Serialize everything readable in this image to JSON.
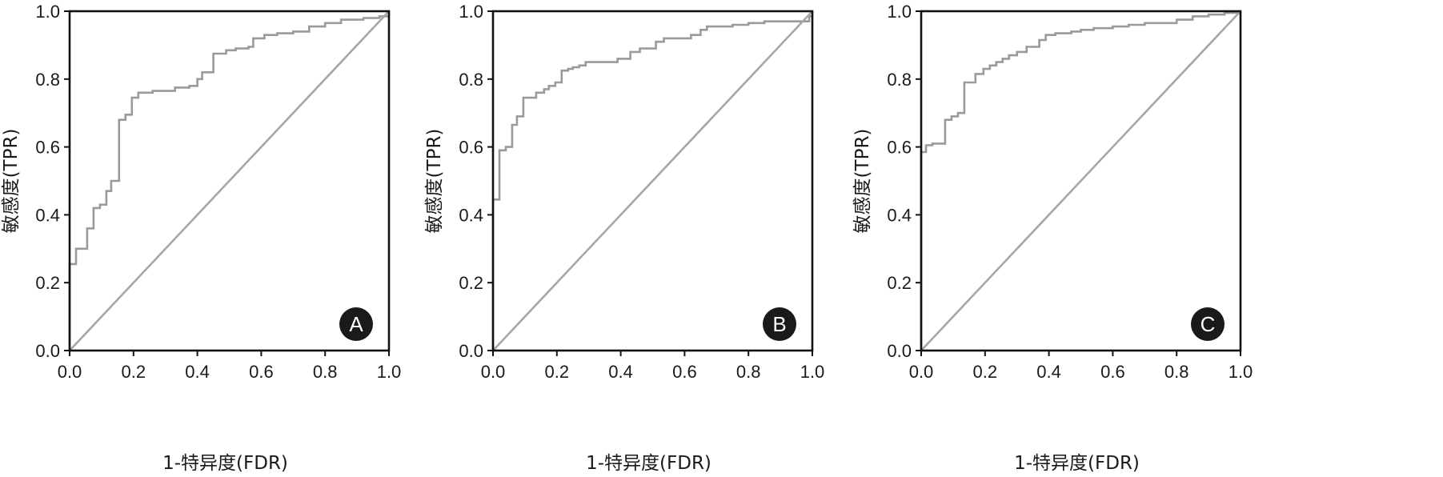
{
  "chart_data": [
    {
      "type": "line",
      "panel_label": "A",
      "xlabel": "1-特异度(FDR)",
      "ylabel": "敏感度(TPR)",
      "xlim": [
        0,
        1
      ],
      "ylim": [
        0,
        1
      ],
      "x_ticks": [
        "0.0",
        "0.2",
        "0.4",
        "0.6",
        "0.8",
        "1.0"
      ],
      "y_ticks": [
        "0.0",
        "0.2",
        "0.4",
        "0.6",
        "0.8",
        "1.0"
      ],
      "grid": false,
      "series": [
        {
          "style": "step",
          "color": "#9a9a9a",
          "points": [
            [
              0.0,
              0.0
            ],
            [
              0.0,
              0.255
            ],
            [
              0.02,
              0.255
            ],
            [
              0.02,
              0.3
            ],
            [
              0.055,
              0.3
            ],
            [
              0.055,
              0.36
            ],
            [
              0.075,
              0.36
            ],
            [
              0.075,
              0.42
            ],
            [
              0.095,
              0.42
            ],
            [
              0.095,
              0.43
            ],
            [
              0.115,
              0.43
            ],
            [
              0.115,
              0.47
            ],
            [
              0.13,
              0.47
            ],
            [
              0.13,
              0.5
            ],
            [
              0.155,
              0.5
            ],
            [
              0.155,
              0.68
            ],
            [
              0.175,
              0.68
            ],
            [
              0.175,
              0.695
            ],
            [
              0.195,
              0.695
            ],
            [
              0.195,
              0.745
            ],
            [
              0.215,
              0.745
            ],
            [
              0.215,
              0.76
            ],
            [
              0.26,
              0.76
            ],
            [
              0.26,
              0.765
            ],
            [
              0.33,
              0.765
            ],
            [
              0.33,
              0.775
            ],
            [
              0.375,
              0.775
            ],
            [
              0.375,
              0.78
            ],
            [
              0.4,
              0.78
            ],
            [
              0.4,
              0.8
            ],
            [
              0.415,
              0.8
            ],
            [
              0.415,
              0.82
            ],
            [
              0.45,
              0.82
            ],
            [
              0.45,
              0.875
            ],
            [
              0.49,
              0.875
            ],
            [
              0.49,
              0.885
            ],
            [
              0.52,
              0.885
            ],
            [
              0.52,
              0.89
            ],
            [
              0.56,
              0.89
            ],
            [
              0.56,
              0.895
            ],
            [
              0.575,
              0.895
            ],
            [
              0.575,
              0.92
            ],
            [
              0.61,
              0.92
            ],
            [
              0.61,
              0.93
            ],
            [
              0.65,
              0.93
            ],
            [
              0.65,
              0.935
            ],
            [
              0.7,
              0.935
            ],
            [
              0.7,
              0.94
            ],
            [
              0.75,
              0.94
            ],
            [
              0.75,
              0.955
            ],
            [
              0.8,
              0.955
            ],
            [
              0.8,
              0.965
            ],
            [
              0.85,
              0.965
            ],
            [
              0.85,
              0.975
            ],
            [
              0.92,
              0.975
            ],
            [
              0.92,
              0.98
            ],
            [
              0.97,
              0.98
            ],
            [
              0.97,
              0.985
            ],
            [
              1.0,
              0.985
            ],
            [
              1.0,
              1.0
            ]
          ]
        },
        {
          "style": "line",
          "color": "#a6a6a6",
          "points": [
            [
              0,
              0
            ],
            [
              1,
              1
            ]
          ]
        }
      ]
    },
    {
      "type": "line",
      "panel_label": "B",
      "xlabel": "1-特异度(FDR)",
      "ylabel": "敏感度(TPR)",
      "xlim": [
        0,
        1
      ],
      "ylim": [
        0,
        1
      ],
      "x_ticks": [
        "0.0",
        "0.2",
        "0.4",
        "0.6",
        "0.8",
        "1.0"
      ],
      "y_ticks": [
        "0.0",
        "0.2",
        "0.4",
        "0.6",
        "0.8",
        "1.0"
      ],
      "grid": false,
      "series": [
        {
          "style": "step",
          "color": "#9a9a9a",
          "points": [
            [
              0.0,
              0.0
            ],
            [
              0.0,
              0.445
            ],
            [
              0.02,
              0.445
            ],
            [
              0.02,
              0.59
            ],
            [
              0.04,
              0.59
            ],
            [
              0.04,
              0.6
            ],
            [
              0.06,
              0.6
            ],
            [
              0.06,
              0.665
            ],
            [
              0.075,
              0.665
            ],
            [
              0.075,
              0.69
            ],
            [
              0.095,
              0.69
            ],
            [
              0.095,
              0.745
            ],
            [
              0.135,
              0.745
            ],
            [
              0.135,
              0.76
            ],
            [
              0.16,
              0.76
            ],
            [
              0.16,
              0.77
            ],
            [
              0.175,
              0.77
            ],
            [
              0.175,
              0.78
            ],
            [
              0.195,
              0.78
            ],
            [
              0.195,
              0.79
            ],
            [
              0.215,
              0.79
            ],
            [
              0.215,
              0.825
            ],
            [
              0.235,
              0.825
            ],
            [
              0.235,
              0.83
            ],
            [
              0.25,
              0.83
            ],
            [
              0.25,
              0.835
            ],
            [
              0.27,
              0.835
            ],
            [
              0.27,
              0.84
            ],
            [
              0.29,
              0.84
            ],
            [
              0.29,
              0.85
            ],
            [
              0.39,
              0.85
            ],
            [
              0.39,
              0.86
            ],
            [
              0.43,
              0.86
            ],
            [
              0.43,
              0.88
            ],
            [
              0.46,
              0.88
            ],
            [
              0.46,
              0.89
            ],
            [
              0.51,
              0.89
            ],
            [
              0.51,
              0.91
            ],
            [
              0.535,
              0.91
            ],
            [
              0.535,
              0.92
            ],
            [
              0.62,
              0.92
            ],
            [
              0.62,
              0.93
            ],
            [
              0.65,
              0.93
            ],
            [
              0.65,
              0.945
            ],
            [
              0.67,
              0.945
            ],
            [
              0.67,
              0.955
            ],
            [
              0.75,
              0.955
            ],
            [
              0.75,
              0.96
            ],
            [
              0.8,
              0.96
            ],
            [
              0.8,
              0.965
            ],
            [
              0.85,
              0.965
            ],
            [
              0.85,
              0.97
            ],
            [
              0.99,
              0.97
            ],
            [
              0.99,
              0.985
            ],
            [
              1.0,
              0.985
            ],
            [
              1.0,
              1.0
            ]
          ]
        },
        {
          "style": "line",
          "color": "#a6a6a6",
          "points": [
            [
              0,
              0
            ],
            [
              1,
              1
            ]
          ]
        }
      ]
    },
    {
      "type": "line",
      "panel_label": "C",
      "xlabel": "1-特异度(FDR)",
      "ylabel": "敏感度(TPR)",
      "xlim": [
        0,
        1
      ],
      "ylim": [
        0,
        1
      ],
      "x_ticks": [
        "0.0",
        "0.2",
        "0.4",
        "0.6",
        "0.8",
        "1.0"
      ],
      "y_ticks": [
        "0.0",
        "0.2",
        "0.4",
        "0.6",
        "0.8",
        "1.0"
      ],
      "grid": false,
      "series": [
        {
          "style": "step",
          "color": "#9a9a9a",
          "points": [
            [
              0.0,
              0.0
            ],
            [
              0.0,
              0.585
            ],
            [
              0.015,
              0.585
            ],
            [
              0.015,
              0.605
            ],
            [
              0.035,
              0.605
            ],
            [
              0.035,
              0.61
            ],
            [
              0.075,
              0.61
            ],
            [
              0.075,
              0.68
            ],
            [
              0.095,
              0.68
            ],
            [
              0.095,
              0.69
            ],
            [
              0.115,
              0.69
            ],
            [
              0.115,
              0.7
            ],
            [
              0.135,
              0.7
            ],
            [
              0.135,
              0.79
            ],
            [
              0.17,
              0.79
            ],
            [
              0.17,
              0.815
            ],
            [
              0.195,
              0.815
            ],
            [
              0.195,
              0.83
            ],
            [
              0.215,
              0.83
            ],
            [
              0.215,
              0.84
            ],
            [
              0.235,
              0.84
            ],
            [
              0.235,
              0.85
            ],
            [
              0.255,
              0.85
            ],
            [
              0.255,
              0.86
            ],
            [
              0.275,
              0.86
            ],
            [
              0.275,
              0.87
            ],
            [
              0.3,
              0.87
            ],
            [
              0.3,
              0.88
            ],
            [
              0.33,
              0.88
            ],
            [
              0.33,
              0.895
            ],
            [
              0.37,
              0.895
            ],
            [
              0.37,
              0.915
            ],
            [
              0.39,
              0.915
            ],
            [
              0.39,
              0.93
            ],
            [
              0.42,
              0.93
            ],
            [
              0.42,
              0.935
            ],
            [
              0.47,
              0.935
            ],
            [
              0.47,
              0.94
            ],
            [
              0.5,
              0.94
            ],
            [
              0.5,
              0.945
            ],
            [
              0.54,
              0.945
            ],
            [
              0.54,
              0.95
            ],
            [
              0.6,
              0.95
            ],
            [
              0.6,
              0.955
            ],
            [
              0.65,
              0.955
            ],
            [
              0.65,
              0.96
            ],
            [
              0.7,
              0.96
            ],
            [
              0.7,
              0.965
            ],
            [
              0.8,
              0.965
            ],
            [
              0.8,
              0.975
            ],
            [
              0.85,
              0.975
            ],
            [
              0.85,
              0.985
            ],
            [
              0.9,
              0.985
            ],
            [
              0.9,
              0.99
            ],
            [
              0.95,
              0.99
            ],
            [
              0.95,
              0.995
            ],
            [
              1.0,
              0.995
            ],
            [
              1.0,
              1.0
            ]
          ]
        },
        {
          "style": "line",
          "color": "#a6a6a6",
          "points": [
            [
              0,
              0
            ],
            [
              1,
              1
            ]
          ]
        }
      ]
    }
  ]
}
